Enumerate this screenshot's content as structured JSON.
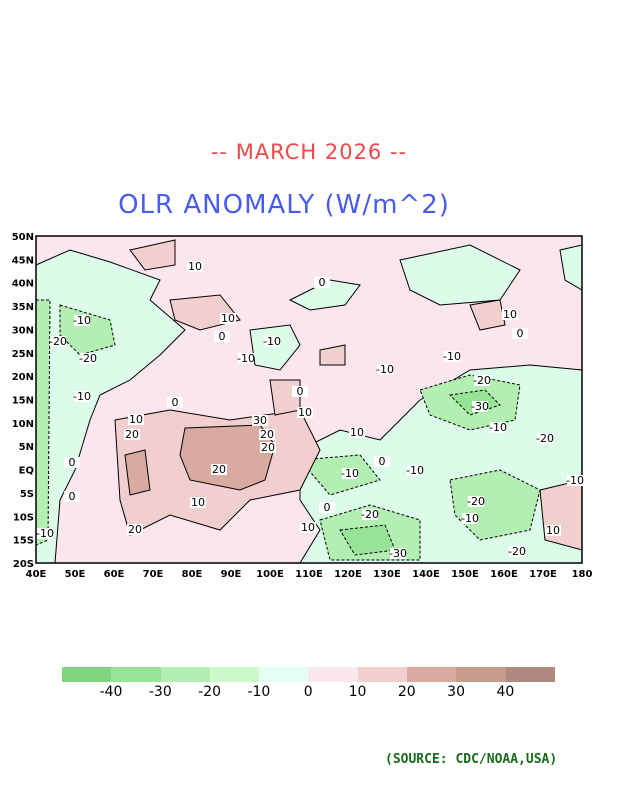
{
  "title_date": "-- MARCH 2026 --",
  "title_main": "OLR ANOMALY (W/m^2)",
  "source": "(SOURCE: CDC/NOAA,USA)",
  "map": {
    "lat_ticks": [
      "50N",
      "45N",
      "40N",
      "35N",
      "30N",
      "25N",
      "20N",
      "15N",
      "10N",
      "5N",
      "EQ",
      "5S",
      "10S",
      "15S",
      "20S"
    ],
    "lon_ticks": [
      "40E",
      "50E",
      "60E",
      "70E",
      "80E",
      "90E",
      "100E",
      "110E",
      "120E",
      "130E",
      "140E",
      "150E",
      "160E",
      "170E",
      "180"
    ],
    "contour_labels": [
      "10",
      "0",
      "-10",
      "-20",
      "-10",
      "10",
      "0",
      "-10",
      "0",
      "10",
      "-10",
      "0",
      "10",
      "10",
      "30",
      "20",
      "20",
      "20",
      "20",
      "10",
      "0",
      "0",
      "20",
      "10",
      "-10",
      "-20",
      "-10",
      "-20",
      "-30",
      "-20",
      "-10",
      "-20",
      "10",
      "-10",
      "-10",
      "-20",
      "-30",
      "-20",
      "10",
      "-10",
      "0",
      "0",
      "0",
      "-10",
      "-10"
    ]
  },
  "colorbar": {
    "colors": [
      "#7fd67f",
      "#97e497",
      "#b3eeb3",
      "#cdfacd",
      "#e4fff4",
      "#fbe8ee",
      "#f2cfcf",
      "#d9aaa0",
      "#c89c8c",
      "#b08a80"
    ],
    "labels": [
      "-40",
      "-30",
      "-20",
      "-10",
      "0",
      "10",
      "20",
      "30",
      "40"
    ]
  }
}
